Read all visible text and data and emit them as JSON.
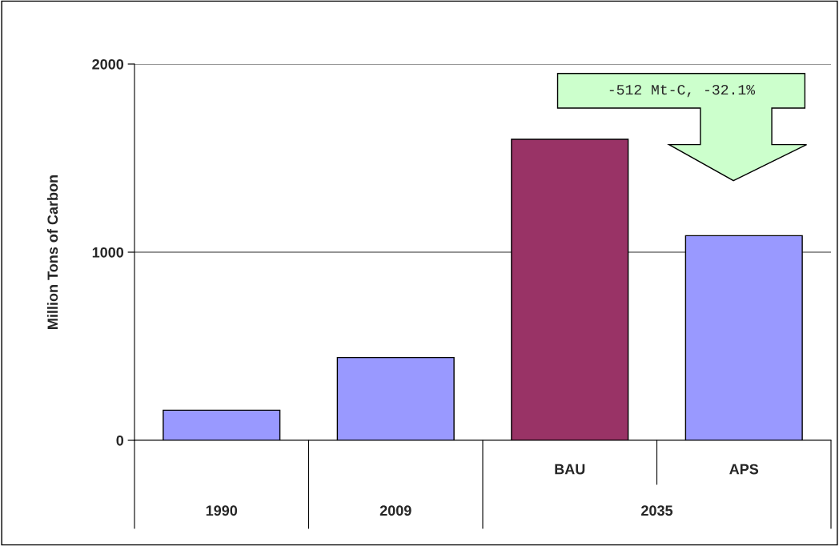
{
  "chart_data": {
    "type": "bar",
    "ylabel": "Million Tons of Carbon",
    "categories": [
      "1990",
      "2009",
      "BAU",
      "APS"
    ],
    "values": [
      160,
      440,
      1600,
      1088
    ],
    "colors": [
      "#9999ff",
      "#9999ff",
      "#993366",
      "#9999ff"
    ],
    "ylim": [
      0,
      2000
    ],
    "yticks": [
      0,
      1000,
      2000
    ],
    "grid": "y",
    "legend": false,
    "annotations": [
      "-512 Mt-C, -32.1%",
      "2035"
    ]
  }
}
